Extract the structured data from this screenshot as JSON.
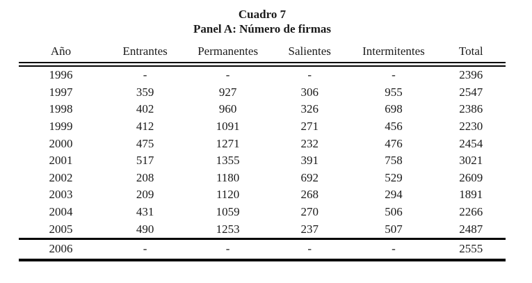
{
  "title": "Cuadro 7",
  "subtitle": "Panel A: Número de firmas",
  "colors": {
    "text": "#1a1a1a",
    "rules": "#000000",
    "background": "#ffffff"
  },
  "table": {
    "headers": [
      "Año",
      "Entrantes",
      "Permanentes",
      "Salientes",
      "Intermitentes",
      "Total"
    ],
    "rows": [
      [
        "1996",
        "-",
        "-",
        "-",
        "-",
        "2396"
      ],
      [
        "1997",
        "359",
        "927",
        "306",
        "955",
        "2547"
      ],
      [
        "1998",
        "402",
        "960",
        "326",
        "698",
        "2386"
      ],
      [
        "1999",
        "412",
        "1091",
        "271",
        "456",
        "2230"
      ],
      [
        "2000",
        "475",
        "1271",
        "232",
        "476",
        "2454"
      ],
      [
        "2001",
        "517",
        "1355",
        "391",
        "758",
        "3021"
      ],
      [
        "2002",
        "208",
        "1180",
        "692",
        "529",
        "2609"
      ],
      [
        "2003",
        "209",
        "1120",
        "268",
        "294",
        "1891"
      ],
      [
        "2004",
        "431",
        "1059",
        "270",
        "506",
        "2266"
      ],
      [
        "2005",
        "490",
        "1253",
        "237",
        "507",
        "2487"
      ]
    ],
    "footer_row": [
      "2006",
      "-",
      "-",
      "-",
      "-",
      "2555"
    ]
  }
}
